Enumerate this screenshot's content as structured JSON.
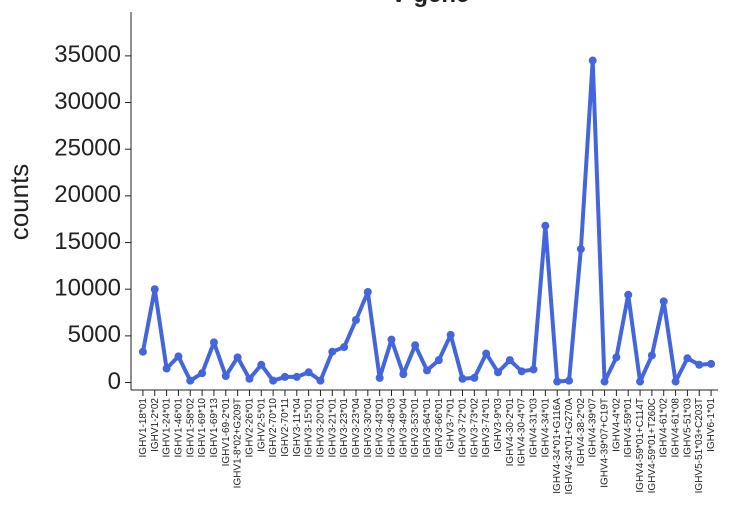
{
  "chart_data": {
    "type": "line",
    "title": "V gene",
    "y_label": "counts",
    "categories": [
      "IGHV1-18*01",
      "IGHV1-2*02",
      "IGHV1-24*01",
      "IGHV1-46*01",
      "IGHV1-58*02",
      "IGHV1-69*10",
      "IGHV1-69*13",
      "IGHV1-69-2*01",
      "IGHV1-8*02+G209T",
      "IGHV2-26*01",
      "IGHV2-5*01",
      "IGHV2-70*10",
      "IGHV2-70*11",
      "IGHV3-11*04",
      "IGHV3-15*01",
      "IGHV3-20*01",
      "IGHV3-21*01",
      "IGHV3-23*01",
      "IGHV3-23*04",
      "IGHV3-30*04",
      "IGHV3-43*01",
      "IGHV3-48*03",
      "IGHV3-49*04",
      "IGHV3-53*01",
      "IGHV3-64*01",
      "IGHV3-66*01",
      "IGHV3-7*01",
      "IGHV3-72*01",
      "IGHV3-73*02",
      "IGHV3-74*01",
      "IGHV3-9*03",
      "IGHV4-30-2*01",
      "IGHV4-30-4*07",
      "IGHV4-31*03",
      "IGHV4-34*01",
      "IGHV4-34*01+G116A",
      "IGHV4-34*01+G270A",
      "IGHV4-38-2*02",
      "IGHV4-39*07",
      "IGHV4-39*07+C19T",
      "IGHV4-4*02",
      "IGHV4-59*01",
      "IGHV4-59*01+C114T",
      "IGHV4-59*01+T260C",
      "IGHV4-61*02",
      "IGHV4-61*08",
      "IGHV5-51*03",
      "IGHV5-51*03+C203T",
      "IGHV6-1*01"
    ],
    "values": [
      3300,
      10000,
      1500,
      2800,
      200,
      1000,
      4300,
      700,
      2700,
      400,
      1900,
      200,
      600,
      600,
      1100,
      200,
      3300,
      3800,
      6700,
      9700,
      500,
      4600,
      900,
      4000,
      1300,
      2400,
      5100,
      400,
      500,
      3100,
      1100,
      2400,
      1200,
      1400,
      16800,
      100,
      200,
      14300,
      34500,
      100,
      2700,
      9400,
      100,
      2900,
      8700,
      100,
      2600,
      1900,
      2000
    ],
    "color": "#4466dd",
    "ylim": [
      -800,
      39700
    ],
    "yticks": [
      0,
      5000,
      10000,
      15000,
      20000,
      25000,
      30000,
      35000
    ]
  }
}
